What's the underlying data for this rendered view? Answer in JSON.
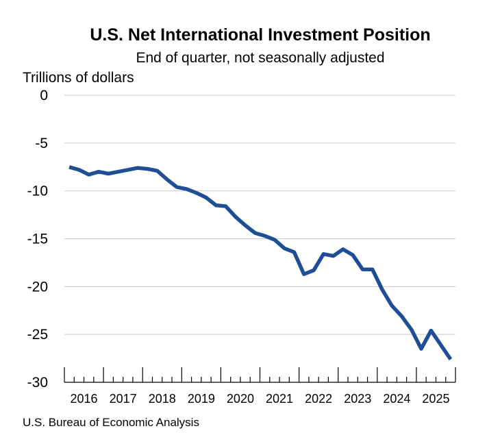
{
  "chart_data": {
    "type": "line",
    "title": "U.S. Net International Investment Position",
    "subtitle": "End of quarter, not seasonally adjusted",
    "ylabel": "Trillions of dollars",
    "xlabel": "",
    "ylim": [
      -30,
      0
    ],
    "yticks": [
      0,
      -5,
      -10,
      -15,
      -20,
      -25,
      -30
    ],
    "ytick_labels": [
      "0",
      "-5",
      "-10",
      "-15",
      "-20",
      "-25",
      "-30"
    ],
    "year_labels": [
      "2016",
      "2017",
      "2018",
      "2019",
      "2020",
      "2021",
      "2022",
      "2023",
      "2024",
      "2025"
    ],
    "grid": true,
    "series": [
      {
        "name": "Net international investment position",
        "color": "#1f4e96",
        "x": [
          "2015 Q4",
          "2016 Q1",
          "2016 Q2",
          "2016 Q3",
          "2016 Q4",
          "2017 Q1",
          "2017 Q2",
          "2017 Q3",
          "2017 Q4",
          "2018 Q1",
          "2018 Q2",
          "2018 Q3",
          "2018 Q4",
          "2019 Q1",
          "2019 Q2",
          "2019 Q3",
          "2019 Q4",
          "2020 Q1",
          "2020 Q2",
          "2020 Q3",
          "2020 Q4",
          "2021 Q1",
          "2021 Q2",
          "2021 Q3",
          "2021 Q4",
          "2022 Q1",
          "2022 Q2",
          "2022 Q3",
          "2022 Q4",
          "2023 Q1",
          "2023 Q2",
          "2023 Q3",
          "2023 Q4",
          "2024 Q1",
          "2024 Q2",
          "2024 Q3",
          "2024 Q4",
          "2025 Q1",
          "2025 Q2",
          "2025 Q3"
        ],
        "values": [
          -7.5,
          -7.8,
          -8.3,
          -8.0,
          -8.2,
          -8.0,
          -7.8,
          -7.6,
          -7.7,
          -7.9,
          -8.8,
          -9.6,
          -9.8,
          -10.2,
          -10.7,
          -11.5,
          -11.6,
          -12.7,
          -13.6,
          -14.4,
          -14.7,
          -15.1,
          -16.0,
          -16.4,
          -18.7,
          -18.3,
          -16.6,
          -16.8,
          -16.1,
          -16.7,
          -18.2,
          -18.2,
          -20.3,
          -22.0,
          -23.1,
          -24.5,
          -26.5,
          -24.6,
          -26.1,
          -27.6
        ]
      }
    ],
    "source": "U.S. Bureau of Economic Analysis"
  }
}
